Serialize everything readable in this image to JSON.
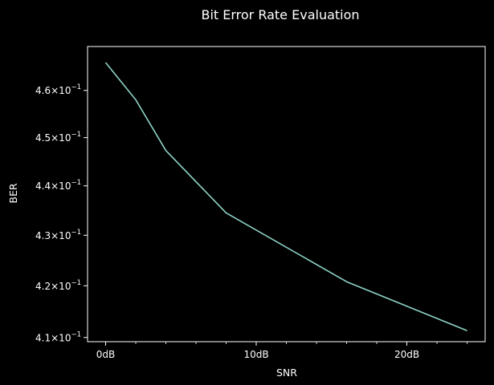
{
  "chart_data": {
    "type": "line",
    "title": "Bit Error Rate Evaluation",
    "xlabel": "SNR",
    "ylabel": "BER",
    "x": [
      0,
      2,
      4,
      8,
      16,
      24
    ],
    "series": [
      {
        "values": [
          0.466,
          0.458,
          0.4473,
          0.4345,
          0.4208,
          0.4113
        ]
      }
    ],
    "xlim": [
      -1.2,
      25.2
    ],
    "ylim": [
      0.4092,
      0.4695
    ],
    "y_scale": "log",
    "x_ticks": [
      {
        "value": 0,
        "label": "0dB"
      },
      {
        "value": 10,
        "label": "10dB"
      },
      {
        "value": 20,
        "label": "20dB"
      }
    ],
    "x_minor_ticks": [
      2,
      4,
      6,
      8,
      12,
      14,
      16,
      18,
      22,
      24
    ],
    "y_ticks": [
      {
        "value": 0.41,
        "mantissa": "4.1"
      },
      {
        "value": 0.42,
        "mantissa": "4.2"
      },
      {
        "value": 0.43,
        "mantissa": "4.3"
      },
      {
        "value": 0.44,
        "mantissa": "4.4"
      },
      {
        "value": 0.45,
        "mantissa": "4.5"
      },
      {
        "value": 0.46,
        "mantissa": "4.6"
      }
    ],
    "y_tick_base": "10",
    "y_tick_exponent": "−1",
    "grid": false,
    "colors": {
      "background": "#000000",
      "axes": "#ffffff",
      "text": "#ffffff",
      "line": "#8dd3c7"
    }
  }
}
